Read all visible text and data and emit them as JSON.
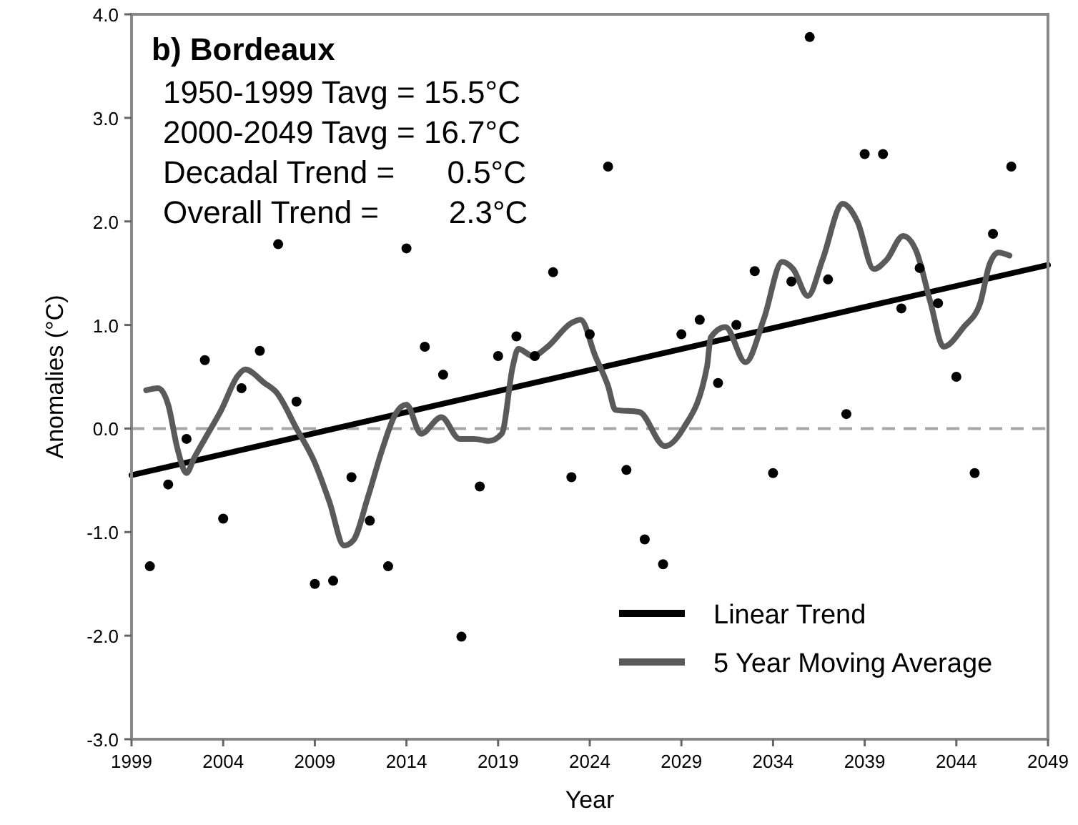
{
  "chart_data": {
    "type": "scatter",
    "title": "b) Bordeaux",
    "xlabel": "Year",
    "ylabel": "Anomalies (°C)",
    "annotations": [
      "1950-1999 Tavg = 15.5°C",
      "2000-2049 Tavg = 16.7°C",
      "Decadal Trend =      0.5°C",
      "Overall Trend =        2.3°C"
    ],
    "xlim": [
      1999,
      2049
    ],
    "xticks": [
      1999,
      2004,
      2009,
      2014,
      2019,
      2024,
      2029,
      2034,
      2039,
      2044,
      2049
    ],
    "ylim": [
      -3,
      4
    ],
    "yticks": [
      {
        "value": -3,
        "label": "-3.0"
      },
      {
        "value": -2,
        "label": "-2.0"
      },
      {
        "value": -1,
        "label": "-1.0"
      },
      {
        "value": 0,
        "label": "0.0"
      },
      {
        "value": 1,
        "label": "1.0"
      },
      {
        "value": 2,
        "label": "2.0"
      },
      {
        "value": 3,
        "label": "3.0"
      },
      {
        "value": 4,
        "label": "4.0"
      }
    ],
    "grid": false,
    "legend": "bottom right",
    "ref_lines": [
      {
        "axis": "y",
        "value": 0,
        "color": "#a6a6a6",
        "line_style": "dashed"
      }
    ],
    "series": [
      {
        "marker": "circle",
        "color": "#000000",
        "x": [
          2000,
          2001,
          2002,
          2003,
          2004,
          2005,
          2006,
          2007,
          2008,
          2009,
          2010,
          2011,
          2012,
          2013,
          2014,
          2015,
          2016,
          2017,
          2018,
          2019,
          2020,
          2021,
          2022,
          2023,
          2024,
          2025,
          2026,
          2027,
          2028,
          2029,
          2030,
          2031,
          2032,
          2033,
          2034,
          2035,
          2036,
          2037,
          2038,
          2039,
          2040,
          2041,
          2042,
          2043,
          2044,
          2045,
          2046,
          2047
        ],
        "values": [
          -1.33,
          -0.54,
          -0.1,
          0.66,
          -0.87,
          0.39,
          0.75,
          1.78,
          0.26,
          -1.5,
          -1.47,
          -0.47,
          -0.89,
          -1.33,
          1.74,
          0.79,
          0.52,
          -2.01,
          -0.56,
          0.7,
          0.89,
          0.7,
          1.51,
          -0.47,
          0.91,
          2.53,
          -0.4,
          -1.07,
          -1.31,
          0.91,
          1.05,
          0.44,
          1.0,
          1.52,
          -0.43,
          1.42,
          3.78,
          1.44,
          0.14,
          2.65,
          2.65,
          1.16,
          1.55,
          1.21,
          0.5,
          -0.43,
          1.88,
          2.53
        ]
      },
      {
        "type": "line",
        "marker": "none",
        "name": "Linear Trend",
        "color": "#000000",
        "x": [
          1999,
          2049
        ],
        "values": [
          -0.45,
          1.58
        ]
      },
      {
        "type": "line",
        "marker": "none",
        "name": "5 Year Moving Average",
        "color": "#5a5a5a",
        "x": [
          1999.8,
          2000.45,
          2001.0,
          2001.5,
          2002.0,
          2002.4,
          2003.0,
          2003.9,
          2004.8,
          2005.2,
          2006.25,
          2006.9,
          2008.0,
          2009.0,
          2009.8,
          2010.6,
          2011.1,
          2011.9,
          2012.7,
          2013.4,
          2014.0,
          2014.8,
          2015.9,
          2016.9,
          2017.7,
          2018.5,
          2019.2,
          2019.8,
          2020.1,
          2020.9,
          2021.7,
          2023.0,
          2023.5,
          2024.3,
          2025.0,
          2025.4,
          2026.7,
          2028.1,
          2029.1,
          2030.4,
          2030.6,
          2031.4,
          2032.5,
          2033.5,
          2034.5,
          2035.1,
          2035.9,
          2036.7,
          2037.8,
          2038.6,
          2039.5,
          2040.2,
          2041.1,
          2041.8,
          2042.6,
          2043.3,
          2044.4,
          2045.3,
          2045.8,
          2046.3,
          2046.9
        ],
        "values": [
          0.37,
          0.39,
          0.23,
          -0.19,
          -0.43,
          -0.29,
          -0.1,
          0.18,
          0.51,
          0.57,
          0.44,
          0.35,
          0.0,
          -0.33,
          -0.71,
          -1.13,
          -1.08,
          -0.66,
          -0.19,
          0.14,
          0.23,
          -0.05,
          0.11,
          -0.1,
          -0.1,
          -0.12,
          -0.05,
          0.6,
          0.77,
          0.7,
          0.79,
          1.02,
          1.05,
          0.7,
          0.41,
          0.18,
          0.16,
          -0.17,
          0.0,
          0.6,
          0.88,
          0.98,
          0.64,
          1.06,
          1.61,
          1.54,
          1.28,
          1.63,
          2.17,
          2.0,
          1.54,
          1.63,
          1.86,
          1.72,
          1.21,
          0.79,
          0.98,
          1.21,
          1.58,
          1.7,
          1.67
        ]
      }
    ]
  }
}
